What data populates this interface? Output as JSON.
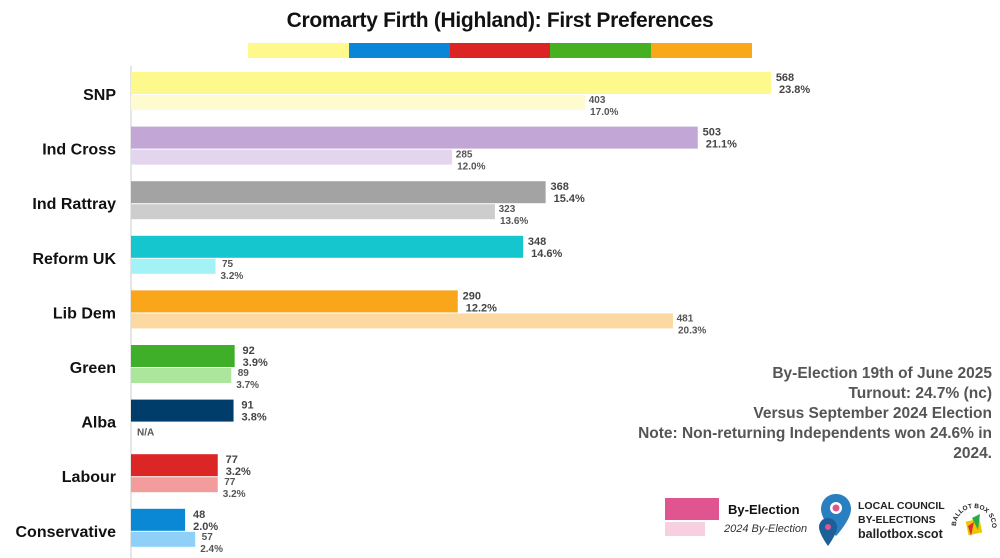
{
  "title": "Cromarty Firth (Highland): First Preferences",
  "strip_colors": [
    "#fef98a",
    "#0a86d8",
    "#dc2424",
    "#46b020",
    "#f9a81a"
  ],
  "chart_data": {
    "type": "bar",
    "orientation": "horizontal",
    "title": "Cromarty Firth (Highland): First Preferences",
    "categories": [
      "SNP",
      "Ind Cross",
      "Ind Rattray",
      "Reform UK",
      "Lib Dem",
      "Green",
      "Alba",
      "Labour",
      "Conservative"
    ],
    "series": [
      {
        "name": "By-Election",
        "values": [
          568,
          503,
          368,
          348,
          290,
          92,
          91,
          77,
          48
        ],
        "value_labels": [
          "568",
          "503",
          "368",
          "348",
          "290",
          "92",
          "91",
          "77",
          "48"
        ],
        "percent_labels": [
          "23.8%",
          "21.1%",
          "15.4%",
          "14.6%",
          "12.2%",
          "3.9%",
          "3.8%",
          "3.2%",
          "2.0%"
        ],
        "colors": [
          "#fdf98c",
          "#c1a6d6",
          "#a3a3a3",
          "#16c6cf",
          "#faa61a",
          "#3fae29",
          "#013d6a",
          "#dc2525",
          "#0a88d6"
        ]
      },
      {
        "name": "2024 By-Election",
        "values": [
          403,
          285,
          323,
          75,
          481,
          89,
          null,
          77,
          57
        ],
        "value_labels": [
          "403",
          "285",
          "323",
          "75",
          "481",
          "89",
          "",
          "77",
          "57"
        ],
        "percent_labels": [
          "17.0%",
          "12.0%",
          "13.6%",
          "3.2%",
          "20.3%",
          "3.7%",
          "",
          "3.2%",
          "2.4%"
        ],
        "colors": [
          "#fefccf",
          "#e3d5ee",
          "#cdcdcd",
          "#a3f2f6",
          "#fcd9a3",
          "#abe69c",
          "#ffffff",
          "#f29c9c",
          "#8ed0f8"
        ],
        "na_label": "N/A"
      }
    ],
    "xlim": [
      0,
      568
    ],
    "legend": "bottom-right"
  },
  "notes": {
    "line1": "By-Election 19th of June 2025",
    "line2": "Turnout: 24.7% (nc)",
    "line3": "Versus September 2024 Election",
    "line4": "Note: Non-returning Independents won 24.6% in 2024."
  },
  "legend": {
    "current": "By-Election",
    "previous": "2024 By-Election",
    "current_color": "#e05590",
    "previous_color": "#f7cfe0"
  },
  "branding": {
    "line1": "LOCAL COUNCIL",
    "line2": "BY-ELECTIONS",
    "line3": "ballotbox.scot",
    "logo_text": "BALLOT BOX SCOTLAND"
  }
}
